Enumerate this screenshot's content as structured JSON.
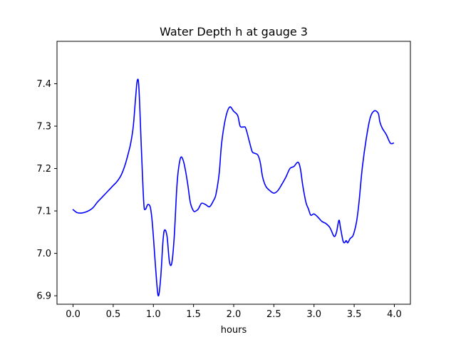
{
  "chart_data": {
    "type": "line",
    "title": "Water Depth h at gauge 3",
    "xlabel": "hours",
    "ylabel": "",
    "xlim": [
      -0.2,
      4.2
    ],
    "ylim": [
      6.88,
      7.5
    ],
    "xticks": [
      0.0,
      0.5,
      1.0,
      1.5,
      2.0,
      2.5,
      3.0,
      3.5,
      4.0
    ],
    "xtick_labels": [
      "0.0",
      "0.5",
      "1.0",
      "1.5",
      "2.0",
      "2.5",
      "3.0",
      "3.5",
      "4.0"
    ],
    "yticks": [
      6.9,
      7.0,
      7.1,
      7.2,
      7.3,
      7.4
    ],
    "ytick_labels": [
      "6.9",
      "7.0",
      "7.1",
      "7.2",
      "7.3",
      "7.4"
    ],
    "grid": false,
    "line_color": "#0000ff",
    "series": [
      {
        "x": [
          0.0,
          0.05,
          0.1,
          0.15,
          0.2,
          0.25,
          0.3,
          0.35,
          0.4,
          0.45,
          0.5,
          0.55,
          0.6,
          0.65,
          0.7,
          0.72,
          0.75,
          0.78,
          0.8,
          0.82,
          0.85,
          0.88,
          0.9,
          0.93,
          0.96,
          0.98,
          1.0,
          1.03,
          1.06,
          1.09,
          1.12,
          1.14,
          1.17,
          1.2,
          1.23,
          1.26,
          1.29,
          1.31,
          1.34,
          1.37,
          1.4,
          1.43,
          1.46,
          1.5,
          1.53,
          1.56,
          1.6,
          1.65,
          1.7,
          1.75,
          1.78,
          1.82,
          1.85,
          1.9,
          1.95,
          2.0,
          2.05,
          2.08,
          2.12,
          2.15,
          2.2,
          2.23,
          2.26,
          2.3,
          2.33,
          2.36,
          2.4,
          2.45,
          2.5,
          2.55,
          2.6,
          2.65,
          2.7,
          2.75,
          2.8,
          2.83,
          2.86,
          2.9,
          2.93,
          2.96,
          3.0,
          3.05,
          3.1,
          3.15,
          3.2,
          3.25,
          3.28,
          3.31,
          3.33,
          3.36,
          3.38,
          3.4,
          3.42,
          3.45,
          3.48,
          3.5,
          3.53,
          3.56,
          3.6,
          3.65,
          3.7,
          3.75,
          3.8,
          3.82,
          3.85,
          3.9,
          3.95,
          3.99
        ],
        "y": [
          7.103,
          7.096,
          7.095,
          7.097,
          7.101,
          7.108,
          7.12,
          7.13,
          7.14,
          7.15,
          7.16,
          7.17,
          7.185,
          7.21,
          7.245,
          7.262,
          7.3,
          7.37,
          7.408,
          7.39,
          7.25,
          7.12,
          7.104,
          7.115,
          7.11,
          7.085,
          7.04,
          6.96,
          6.9,
          6.94,
          7.03,
          7.055,
          7.04,
          6.98,
          6.978,
          7.04,
          7.15,
          7.195,
          7.226,
          7.22,
          7.195,
          7.16,
          7.12,
          7.1,
          7.1,
          7.105,
          7.118,
          7.115,
          7.11,
          7.125,
          7.14,
          7.19,
          7.26,
          7.32,
          7.345,
          7.335,
          7.325,
          7.3,
          7.298,
          7.295,
          7.26,
          7.24,
          7.236,
          7.232,
          7.215,
          7.18,
          7.158,
          7.148,
          7.142,
          7.148,
          7.163,
          7.18,
          7.2,
          7.205,
          7.215,
          7.2,
          7.16,
          7.12,
          7.105,
          7.09,
          7.093,
          7.085,
          7.075,
          7.07,
          7.06,
          7.04,
          7.05,
          7.078,
          7.06,
          7.03,
          7.025,
          7.03,
          7.025,
          7.035,
          7.04,
          7.05,
          7.075,
          7.12,
          7.2,
          7.27,
          7.32,
          7.336,
          7.33,
          7.31,
          7.295,
          7.28,
          7.26,
          7.26
        ]
      }
    ]
  }
}
